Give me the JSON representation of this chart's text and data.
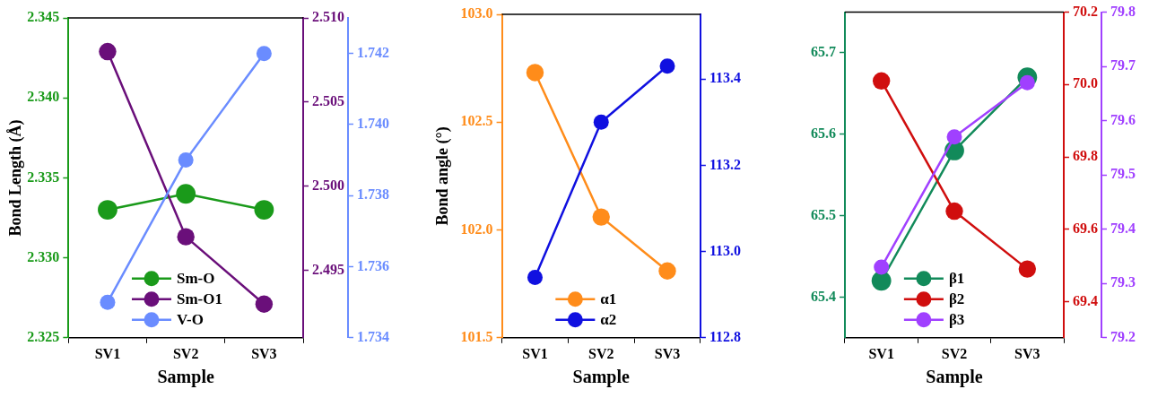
{
  "chart_data": [
    {
      "type": "line",
      "categories": [
        "SV1",
        "SV2",
        "SV3"
      ],
      "xlabel": "Sample",
      "ylabel": "Bond Length (Å)",
      "ylim": [
        2.325,
        2.345
      ],
      "yticks": [
        2.325,
        {
          "value": 2.33,
          "label": "2.330"
        },
        2.335,
        {
          "value": 2.34,
          "label": "2.340"
        },
        2.345
      ],
      "y2lim": [
        2.491,
        2.51
      ],
      "y2ticks": [
        2.495,
        {
          "value": 2.5,
          "label": "2.500"
        },
        2.505,
        {
          "value": 2.51,
          "label": "2.510"
        }
      ],
      "y3lim": [
        1.734,
        1.743
      ],
      "y3ticks": [
        1.734,
        1.736,
        1.738,
        {
          "value": 1.74,
          "label": "1.740"
        },
        1.742
      ],
      "marker": "circle",
      "legend": "bottom",
      "grid": false,
      "series": [
        {
          "name": "Sm-O",
          "color": "#1a9a1a",
          "values": [
            2.333,
            2.334,
            2.333
          ]
        },
        {
          "name": "Sm-O1",
          "color": "#6a0f7a",
          "axis": "y2",
          "values": [
            2.508,
            2.497,
            2.493
          ]
        },
        {
          "name": "V-O",
          "color": "#6a8cff",
          "axis": "y3",
          "values": [
            1.735,
            1.739,
            1.742
          ]
        }
      ]
    },
    {
      "type": "line",
      "categories": [
        "SV1",
        "SV2",
        "SV3"
      ],
      "xlabel": "Sample",
      "ylabel": "Bond angle (°)",
      "ylim": [
        101.5,
        103.0
      ],
      "yticks": [
        101.5,
        {
          "value": 102,
          "label": "102.0"
        },
        102.5,
        {
          "value": 103,
          "label": "103.0"
        }
      ],
      "y2lim": [
        112.8,
        113.55
      ],
      "y2ticks": [
        112.8,
        {
          "value": 113,
          "label": "113.0"
        },
        113.2,
        113.4
      ],
      "marker": "circle",
      "legend": "bottom",
      "grid": false,
      "series": [
        {
          "name": "α1",
          "color": "#ff8c1a",
          "values": [
            102.73,
            102.06,
            101.81
          ]
        },
        {
          "name": "α2",
          "color": "#1010e0",
          "axis": "y2",
          "values": [
            112.94,
            113.3,
            113.43
          ]
        }
      ]
    },
    {
      "type": "line",
      "categories": [
        "SV1",
        "SV2",
        "SV3"
      ],
      "xlabel": "Sample",
      "ylim": [
        65.35,
        65.75
      ],
      "yticks": [
        65.4,
        65.5,
        65.6,
        65.7
      ],
      "y2lim": [
        69.3,
        70.2
      ],
      "y2ticks": [
        69.4,
        69.6,
        69.8,
        {
          "value": 70,
          "label": "70.0"
        },
        70.2
      ],
      "y3lim": [
        79.2,
        79.8
      ],
      "y3ticks": [
        79.2,
        79.3,
        79.4,
        79.5,
        79.6,
        79.7,
        79.8
      ],
      "marker": "circle",
      "legend": "bottom",
      "grid": false,
      "series": [
        {
          "name": "β1",
          "color": "#128a5a",
          "values": [
            65.42,
            65.58,
            65.67
          ]
        },
        {
          "name": "β2",
          "color": "#d00e0e",
          "axis": "y2",
          "values": [
            70.01,
            69.65,
            69.49
          ]
        },
        {
          "name": "β3",
          "color": "#a040ff",
          "axis": "y3",
          "values": [
            79.33,
            79.57,
            79.67
          ]
        }
      ]
    }
  ]
}
